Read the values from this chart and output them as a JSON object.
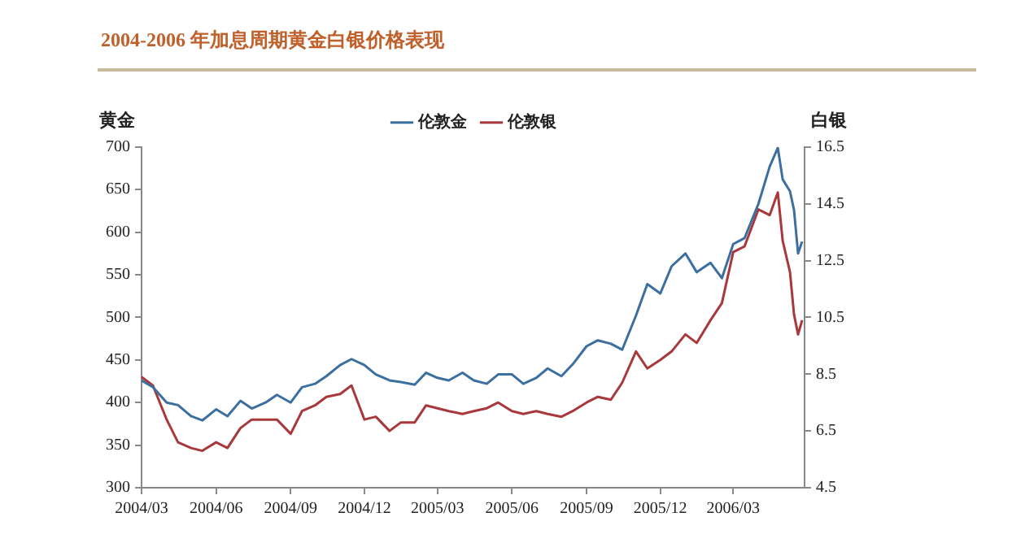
{
  "chart_data": {
    "type": "line",
    "title": "2004-2006 年加息周期黄金白银价格表现",
    "ylabel": "黄金",
    "y2label": "白银",
    "x": [
      "2004-03-01",
      "2004-03-15",
      "2004-04-01",
      "2004-04-15",
      "2004-05-01",
      "2004-05-15",
      "2004-06-01",
      "2004-06-15",
      "2004-07-01",
      "2004-07-15",
      "2004-08-01",
      "2004-08-15",
      "2004-09-01",
      "2004-09-15",
      "2004-10-01",
      "2004-10-15",
      "2004-11-01",
      "2004-11-15",
      "2004-12-01",
      "2004-12-15",
      "2005-01-01",
      "2005-01-15",
      "2005-02-01",
      "2005-02-15",
      "2005-03-01",
      "2005-03-15",
      "2005-04-01",
      "2005-04-15",
      "2005-05-01",
      "2005-05-15",
      "2005-06-01",
      "2005-06-15",
      "2005-07-01",
      "2005-07-15",
      "2005-08-01",
      "2005-08-15",
      "2005-09-01",
      "2005-09-15",
      "2005-10-01",
      "2005-10-15",
      "2005-11-01",
      "2005-11-15",
      "2005-12-01",
      "2005-12-15",
      "2006-01-01",
      "2006-01-15",
      "2006-02-01",
      "2006-02-15",
      "2006-03-01",
      "2006-03-15",
      "2006-04-01",
      "2006-04-15",
      "2006-04-25",
      "2006-05-01",
      "2006-05-10",
      "2006-05-15",
      "2006-05-20",
      "2006-05-25"
    ],
    "series": [
      {
        "name": "伦敦金",
        "color": "#3b6fa0",
        "values": [
          426,
          418,
          400,
          397,
          384,
          379,
          392,
          384,
          402,
          393,
          400,
          409,
          400,
          418,
          422,
          431,
          444,
          451,
          444,
          433,
          426,
          424,
          421,
          435,
          429,
          426,
          435,
          426,
          422,
          433,
          433,
          422,
          429,
          440,
          431,
          445,
          466,
          473,
          469,
          462,
          502,
          539,
          528,
          560,
          575,
          553,
          564,
          546,
          586,
          593,
          633,
          677,
          699,
          662,
          648,
          626,
          575,
          589
        ]
      },
      {
        "name": "伦敦银",
        "color": "#a8383b",
        "axis": "y2",
        "values": [
          8.4,
          8.1,
          6.9,
          6.1,
          5.9,
          5.8,
          6.1,
          5.9,
          6.6,
          6.9,
          6.9,
          6.9,
          6.4,
          7.2,
          7.4,
          7.7,
          7.8,
          8.1,
          6.9,
          7.0,
          6.5,
          6.8,
          6.8,
          7.4,
          7.3,
          7.2,
          7.1,
          7.2,
          7.3,
          7.5,
          7.2,
          7.1,
          7.2,
          7.1,
          7.0,
          7.2,
          7.5,
          7.7,
          7.6,
          8.2,
          9.3,
          8.7,
          9.0,
          9.3,
          9.9,
          9.6,
          10.4,
          11.0,
          12.8,
          13.0,
          14.3,
          14.1,
          14.9,
          13.2,
          12.1,
          10.6,
          9.9,
          10.4
        ]
      }
    ],
    "xlim": [
      "2004-03-01",
      "2006-05-28"
    ],
    "xticks": [
      {
        "value": "2004-03-01",
        "label": "2004/03"
      },
      {
        "value": "2004-06-01",
        "label": "2004/06"
      },
      {
        "value": "2004-09-01",
        "label": "2004/09"
      },
      {
        "value": "2004-12-01",
        "label": "2004/12"
      },
      {
        "value": "2005-03-01",
        "label": "2005/03"
      },
      {
        "value": "2005-06-01",
        "label": "2005/06"
      },
      {
        "value": "2005-09-01",
        "label": "2005/09"
      },
      {
        "value": "2005-12-01",
        "label": "2005/12"
      },
      {
        "value": "2006-03-01",
        "label": "2006/03"
      }
    ],
    "ylim": [
      300,
      700
    ],
    "yticks": [
      300,
      350,
      400,
      450,
      500,
      550,
      600,
      650,
      700
    ],
    "y2lim": [
      4.5,
      16.5
    ],
    "y2ticks": [
      4.5,
      6.5,
      8.5,
      10.5,
      12.5,
      14.5,
      16.5
    ],
    "grid": false,
    "legend": "top",
    "marker": "none",
    "line_style": "solid"
  }
}
